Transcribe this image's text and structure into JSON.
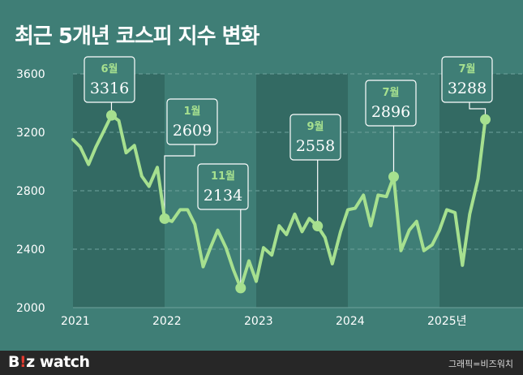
{
  "chart_data": {
    "type": "line",
    "title": "최근 5개년 코스피 지수 변화",
    "xlabel": "",
    "ylabel": "",
    "ylim": [
      2000,
      3600
    ],
    "yticks": [
      2000,
      2400,
      2800,
      3200,
      3600
    ],
    "xticks": [
      {
        "x": 2021,
        "label": "2021"
      },
      {
        "x": 2022,
        "label": "2022"
      },
      {
        "x": 2023,
        "label": "2023"
      },
      {
        "x": 2024,
        "label": "2024"
      },
      {
        "x": 2025,
        "label": "2025년"
      }
    ],
    "xlim": [
      2021,
      2026
    ],
    "grid": true,
    "line_color": "#a6e08f",
    "shaded_years": [
      2021,
      2023,
      2025
    ],
    "points": [
      {
        "x": 2021.0,
        "y": 3150
      },
      {
        "x": 2021.08,
        "y": 3100
      },
      {
        "x": 2021.17,
        "y": 2980
      },
      {
        "x": 2021.25,
        "y": 3100
      },
      {
        "x": 2021.33,
        "y": 3200
      },
      {
        "x": 2021.42,
        "y": 3316
      },
      {
        "x": 2021.5,
        "y": 3280
      },
      {
        "x": 2021.58,
        "y": 3060
      },
      {
        "x": 2021.67,
        "y": 3110
      },
      {
        "x": 2021.75,
        "y": 2900
      },
      {
        "x": 2021.83,
        "y": 2830
      },
      {
        "x": 2021.92,
        "y": 2960
      },
      {
        "x": 2022.0,
        "y": 2609
      },
      {
        "x": 2022.08,
        "y": 2590
      },
      {
        "x": 2022.17,
        "y": 2670
      },
      {
        "x": 2022.25,
        "y": 2670
      },
      {
        "x": 2022.33,
        "y": 2570
      },
      {
        "x": 2022.42,
        "y": 2280
      },
      {
        "x": 2022.5,
        "y": 2410
      },
      {
        "x": 2022.58,
        "y": 2530
      },
      {
        "x": 2022.67,
        "y": 2410
      },
      {
        "x": 2022.75,
        "y": 2260
      },
      {
        "x": 2022.83,
        "y": 2134
      },
      {
        "x": 2022.92,
        "y": 2320
      },
      {
        "x": 2023.0,
        "y": 2180
      },
      {
        "x": 2023.08,
        "y": 2410
      },
      {
        "x": 2023.17,
        "y": 2360
      },
      {
        "x": 2023.25,
        "y": 2560
      },
      {
        "x": 2023.33,
        "y": 2500
      },
      {
        "x": 2023.42,
        "y": 2640
      },
      {
        "x": 2023.5,
        "y": 2520
      },
      {
        "x": 2023.58,
        "y": 2610
      },
      {
        "x": 2023.67,
        "y": 2558
      },
      {
        "x": 2023.75,
        "y": 2480
      },
      {
        "x": 2023.83,
        "y": 2300
      },
      {
        "x": 2023.92,
        "y": 2520
      },
      {
        "x": 2024.0,
        "y": 2670
      },
      {
        "x": 2024.08,
        "y": 2680
      },
      {
        "x": 2024.17,
        "y": 2770
      },
      {
        "x": 2024.25,
        "y": 2560
      },
      {
        "x": 2024.33,
        "y": 2770
      },
      {
        "x": 2024.42,
        "y": 2760
      },
      {
        "x": 2024.5,
        "y": 2896
      },
      {
        "x": 2024.58,
        "y": 2390
      },
      {
        "x": 2024.67,
        "y": 2530
      },
      {
        "x": 2024.75,
        "y": 2590
      },
      {
        "x": 2024.83,
        "y": 2390
      },
      {
        "x": 2024.92,
        "y": 2430
      },
      {
        "x": 2025.0,
        "y": 2530
      },
      {
        "x": 2025.08,
        "y": 2670
      },
      {
        "x": 2025.17,
        "y": 2650
      },
      {
        "x": 2025.25,
        "y": 2290
      },
      {
        "x": 2025.33,
        "y": 2640
      },
      {
        "x": 2025.42,
        "y": 2880
      },
      {
        "x": 2025.5,
        "y": 3288
      }
    ],
    "callouts": [
      {
        "month": "6월",
        "value": "3316",
        "x": 2021.42,
        "y": 3316
      },
      {
        "month": "1월",
        "value": "2609",
        "x": 2022.0,
        "y": 2609
      },
      {
        "month": "11월",
        "value": "2134",
        "x": 2022.83,
        "y": 2134
      },
      {
        "month": "9월",
        "value": "2558",
        "x": 2023.67,
        "y": 2558
      },
      {
        "month": "7월",
        "value": "2896",
        "x": 2024.5,
        "y": 2896
      },
      {
        "month": "7월",
        "value": "3288",
        "x": 2025.5,
        "y": 3288
      }
    ]
  },
  "footer": {
    "logo_b": "B",
    "logo_i": "!",
    "logo_z": "z",
    "logo_rest": " watch",
    "credit": "그래픽=비즈워치"
  }
}
